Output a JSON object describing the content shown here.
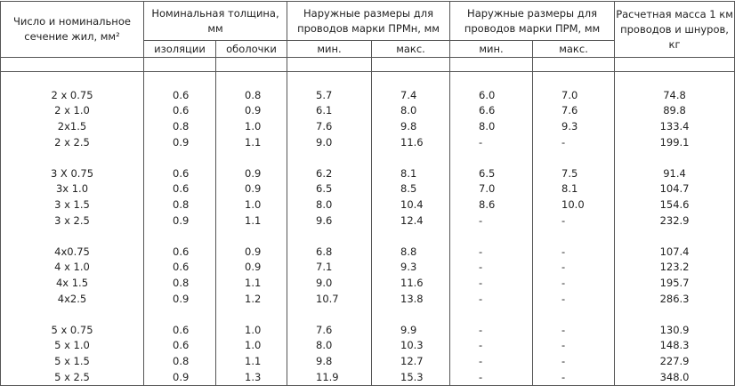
{
  "header": {
    "cross_section": "Число и номинальное сечение жил, мм²",
    "thickness": "Номинальная толщина, мм",
    "insulation": "изоляции",
    "sheath": "оболочки",
    "prmn": "Наружные размеры для проводов марки ПРМн, мм",
    "prmn_min": "мин.",
    "prmn_max": "макс.",
    "prm": "Наружные размеры для проводов марки ПРМ, мм",
    "prm_min": "мин.",
    "prm_max": "макс.",
    "mass": "Расчетная масса 1 км проводов и шнуров, кг"
  },
  "groups": [
    [
      [
        "2 x 0.75",
        "0.6",
        "0.8",
        "5.7",
        "7.4",
        "6.0",
        "7.0",
        "74.8"
      ],
      [
        "2 x 1.0",
        "0.6",
        "0.9",
        "6.1",
        "8.0",
        "6.6",
        "7.6",
        "89.8"
      ],
      [
        "2x1.5",
        "0.8",
        "1.0",
        "7.6",
        "9.8",
        "8.0",
        "9.3",
        "133.4"
      ],
      [
        "2 x 2.5",
        "0.9",
        "1.1",
        "9.0",
        "11.6",
        "-",
        "-",
        "199.1"
      ]
    ],
    [
      [
        "3 X 0.75",
        "0.6",
        "0.9",
        "6.2",
        "8.1",
        "6.5",
        "7.5",
        "91.4"
      ],
      [
        "3x 1.0",
        "0.6",
        "0.9",
        "6.5",
        "8.5",
        "7.0",
        "8.1",
        "104.7"
      ],
      [
        "3 x 1.5",
        "0.8",
        "1.0",
        "8.0",
        "10.4",
        "8.6",
        "10.0",
        "154.6"
      ],
      [
        "3 x 2.5",
        "0.9",
        "1.1",
        "9.6",
        "12.4",
        "-",
        "-",
        "232.9"
      ]
    ],
    [
      [
        "4x0.75",
        "0.6",
        "0.9",
        "6.8",
        "8.8",
        "-",
        "-",
        "107.4"
      ],
      [
        "4 x 1.0",
        "0.6",
        "0.9",
        "7.1",
        "9.3",
        "-",
        "-",
        "123.2"
      ],
      [
        "4x 1.5",
        "0.8",
        "1.1",
        "9.0",
        "11.6",
        "-",
        "-",
        "195.7"
      ],
      [
        "4x2.5",
        "0.9",
        "1.2",
        "10.7",
        "13.8",
        "-",
        "-",
        "286.3"
      ]
    ],
    [
      [
        "5 x 0.75",
        "0.6",
        "1.0",
        "7.6",
        "9.9",
        "-",
        "-",
        "130.9"
      ],
      [
        "5 x 1.0",
        "0.6",
        "1.0",
        "8.0",
        "10.3",
        "-",
        "-",
        "148.3"
      ],
      [
        "5 x 1.5",
        "0.8",
        "1.1",
        "9.8",
        "12.7",
        "-",
        "-",
        "227.9"
      ],
      [
        "5 x 2.5",
        "0.9",
        "1.3",
        "11.9",
        "15.3",
        "-",
        "-",
        "348.0"
      ]
    ]
  ]
}
